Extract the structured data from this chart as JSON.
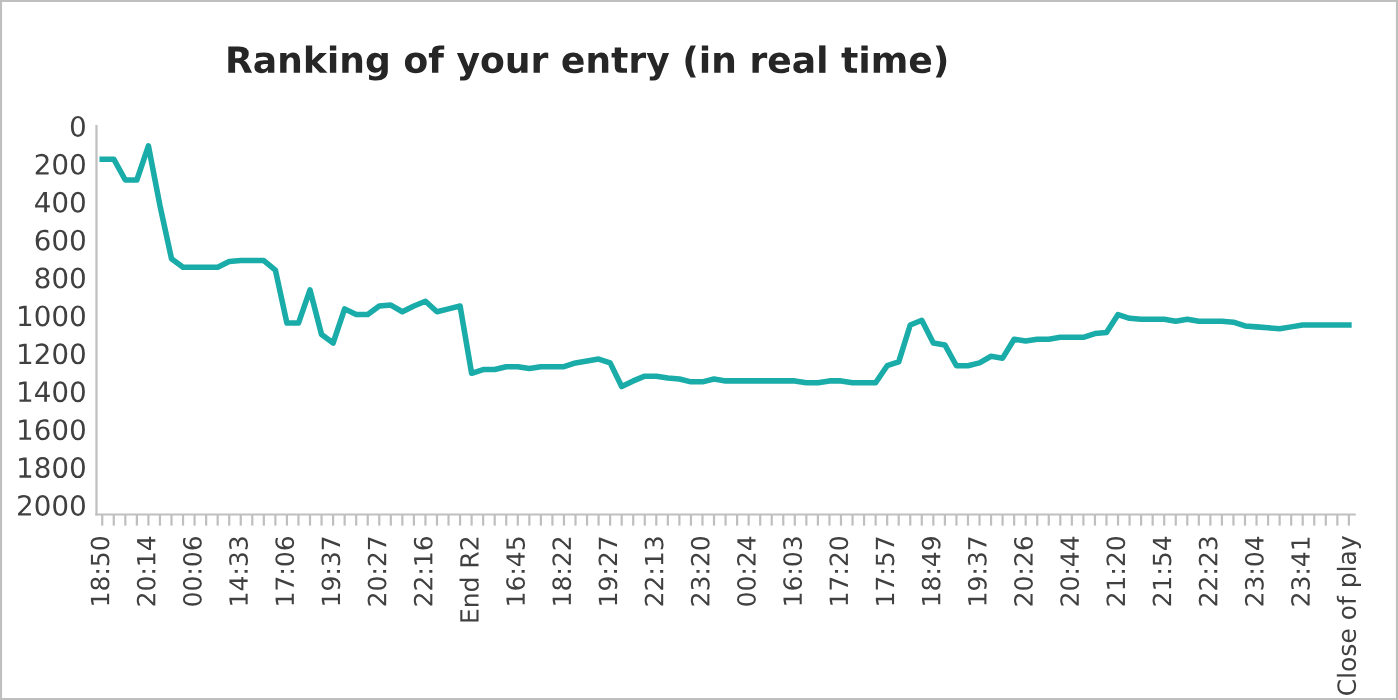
{
  "chart_data": {
    "type": "line",
    "title": "Ranking of your entry (in real time)",
    "categories": [
      "18:50",
      null,
      null,
      null,
      "20:14",
      null,
      null,
      null,
      "00:06",
      null,
      null,
      null,
      "14:33",
      null,
      null,
      null,
      "17:06",
      null,
      null,
      null,
      "19:37",
      null,
      null,
      null,
      "20:27",
      null,
      null,
      null,
      "22:16",
      null,
      null,
      null,
      "End R2",
      null,
      null,
      null,
      "16:45",
      null,
      null,
      null,
      "18:22",
      null,
      null,
      null,
      "19:27",
      null,
      null,
      null,
      "22:13",
      null,
      null,
      null,
      "23:20",
      null,
      null,
      null,
      "00:24",
      null,
      null,
      null,
      "16:03",
      null,
      null,
      null,
      "17:20",
      null,
      null,
      null,
      "17:57",
      null,
      null,
      null,
      "18:49",
      null,
      null,
      null,
      "19:37",
      null,
      null,
      null,
      "20:26",
      null,
      null,
      null,
      "20:44",
      null,
      null,
      null,
      "21:20",
      null,
      null,
      null,
      "21:54",
      null,
      null,
      null,
      "22:23",
      null,
      null,
      null,
      "23:04",
      null,
      null,
      null,
      "23:41",
      null,
      null,
      null,
      "Close of play"
    ],
    "series": [
      {
        "color": "#1aaca8",
        "values": [
          175,
          175,
          285,
          285,
          105,
          420,
          700,
          745,
          745,
          745,
          745,
          715,
          710,
          710,
          710,
          760,
          1040,
          1040,
          865,
          1100,
          1145,
          965,
          995,
          995,
          950,
          945,
          980,
          950,
          925,
          980,
          965,
          950,
          1305,
          1285,
          1285,
          1270,
          1270,
          1280,
          1270,
          1270,
          1270,
          1250,
          1240,
          1230,
          1250,
          1375,
          1345,
          1320,
          1320,
          1330,
          1335,
          1350,
          1350,
          1335,
          1345,
          1345,
          1345,
          1345,
          1345,
          1345,
          1345,
          1355,
          1355,
          1345,
          1345,
          1355,
          1355,
          1355,
          1265,
          1245,
          1050,
          1025,
          1145,
          1155,
          1265,
          1265,
          1250,
          1215,
          1225,
          1125,
          1135,
          1125,
          1125,
          1115,
          1115,
          1115,
          1095,
          1090,
          995,
          1015,
          1020,
          1020,
          1020,
          1030,
          1020,
          1030,
          1030,
          1030,
          1035,
          1055,
          1060,
          1065,
          1070,
          1060,
          1050,
          1050,
          1050,
          1050,
          1050
        ]
      }
    ],
    "ylim": [
      2050,
      0
    ],
    "yticks": [
      0,
      200,
      400,
      600,
      800,
      1000,
      1200,
      1400,
      1600,
      1800,
      2000
    ],
    "grid": false,
    "marker": "none",
    "line_style": "solid"
  }
}
